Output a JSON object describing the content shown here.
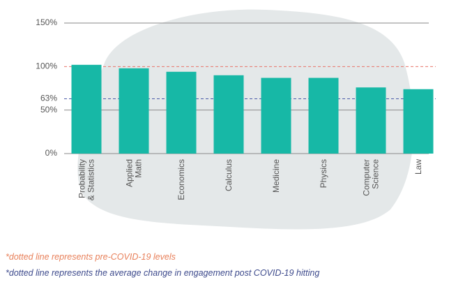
{
  "chart_data": {
    "type": "bar",
    "categories": [
      "Probability & Statistics",
      "Applied Math",
      "Economics",
      "Calculus",
      "Medicine",
      "Physics",
      "Computer Science",
      "Law"
    ],
    "values": [
      102,
      98,
      94,
      90,
      87,
      87,
      76,
      74
    ],
    "color": "#17b8a6",
    "ylim": [
      0,
      150
    ],
    "yticks": [
      {
        "value": 0,
        "label": "0%"
      },
      {
        "value": 50,
        "label": "50%"
      },
      {
        "value": 63,
        "label": "63%"
      },
      {
        "value": 100,
        "label": "100%"
      },
      {
        "value": 150,
        "label": "150%"
      }
    ],
    "reference_lines": [
      {
        "value": 100,
        "color": "#e8746b"
      },
      {
        "value": 63,
        "color": "#4a5ba8"
      }
    ],
    "grid": true,
    "notes": [
      {
        "text": "*dotted line represents pre-COVID-19 levels",
        "color": "#e8805a"
      },
      {
        "text": "*dotted line represents the average change in engagement post COVID-19 hitting",
        "color": "#3d4a8c"
      }
    ]
  }
}
